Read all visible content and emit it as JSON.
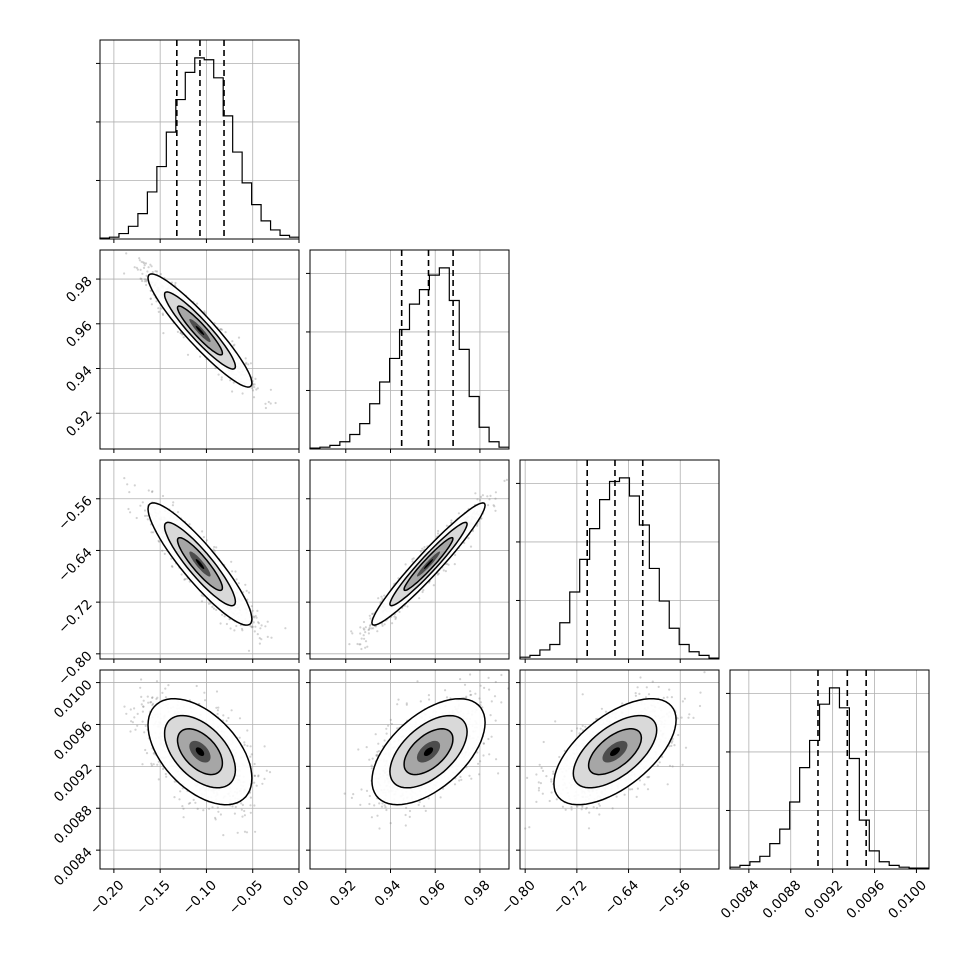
{
  "chart_data": {
    "type": "corner",
    "parameters": [
      {
        "range": [
          -0.215,
          0.0
        ],
        "ticks": [
          -0.2,
          -0.15,
          -0.1,
          -0.05,
          0.0
        ],
        "tick_labels": [
          "−0.20",
          "−0.15",
          "−0.10",
          "−0.05",
          "0.00"
        ],
        "quantiles": [
          -0.132,
          -0.107,
          -0.081
        ],
        "hist": [
          0.005,
          0.01,
          0.03,
          0.07,
          0.14,
          0.26,
          0.4,
          0.59,
          0.77,
          0.92,
          1.0,
          0.99,
          0.89,
          0.68,
          0.48,
          0.31,
          0.19,
          0.1,
          0.05,
          0.02,
          0.01
        ]
      },
      {
        "range": [
          0.904,
          0.993
        ],
        "ticks": [
          0.92,
          0.94,
          0.96,
          0.98
        ],
        "tick_labels": [
          "0.92",
          "0.94",
          "0.96",
          "0.98"
        ],
        "quantiles": [
          0.945,
          0.957,
          0.968
        ],
        "hist": [
          0.005,
          0.01,
          0.02,
          0.04,
          0.08,
          0.14,
          0.25,
          0.37,
          0.5,
          0.66,
          0.8,
          0.88,
          0.96,
          1.0,
          0.82,
          0.55,
          0.29,
          0.12,
          0.04,
          0.01
        ]
      },
      {
        "range": [
          -0.808,
          -0.5
        ],
        "ticks": [
          -0.8,
          -0.72,
          -0.64,
          -0.56
        ],
        "tick_labels": [
          "−0.80",
          "−0.72",
          "−0.64",
          "−0.56"
        ],
        "quantiles": [
          -0.704,
          -0.661,
          -0.618
        ],
        "hist": [
          0.01,
          0.02,
          0.05,
          0.08,
          0.2,
          0.37,
          0.55,
          0.72,
          0.88,
          0.98,
          1.0,
          0.9,
          0.74,
          0.5,
          0.32,
          0.17,
          0.08,
          0.04,
          0.02,
          0.005
        ]
      },
      {
        "range": [
          0.00822,
          0.01012
        ],
        "ticks": [
          0.0084,
          0.0088,
          0.0092,
          0.0096,
          0.01
        ],
        "tick_labels": [
          "0.0084",
          "0.0088",
          "0.0092",
          "0.0096",
          "0.0100"
        ],
        "quantiles": [
          0.00906,
          0.00934,
          0.00952
        ],
        "hist": [
          0.01,
          0.02,
          0.04,
          0.07,
          0.14,
          0.22,
          0.37,
          0.56,
          0.71,
          0.91,
          1.0,
          0.89,
          0.61,
          0.27,
          0.1,
          0.04,
          0.02,
          0.01,
          0.005,
          0.005
        ]
      }
    ],
    "pairs": [
      {
        "row": 1,
        "col": 0,
        "corr": -0.93
      },
      {
        "row": 2,
        "col": 0,
        "corr": -0.9
      },
      {
        "row": 2,
        "col": 1,
        "corr": 0.96
      },
      {
        "row": 3,
        "col": 0,
        "corr": -0.5
      },
      {
        "row": 3,
        "col": 1,
        "corr": 0.55
      },
      {
        "row": 3,
        "col": 2,
        "corr": 0.6
      }
    ],
    "hist_yticks": 3,
    "grid": true,
    "colors": {
      "line": "#000000",
      "scatter": "#7f7f7f",
      "grid": "#b0b0b0"
    }
  }
}
